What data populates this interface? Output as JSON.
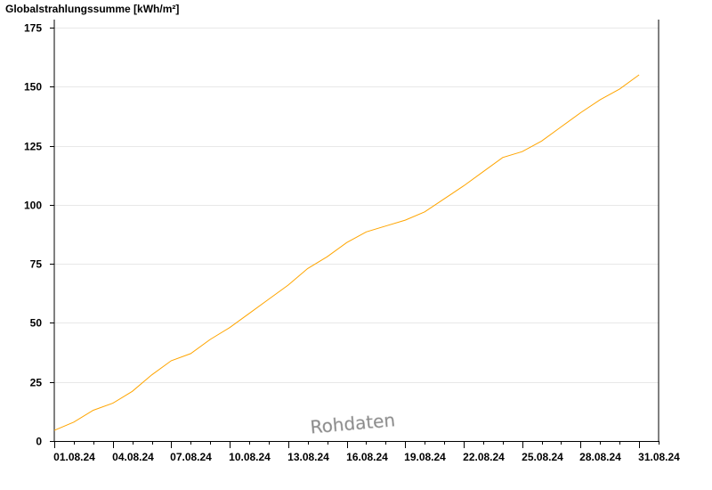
{
  "chart_data": {
    "type": "line",
    "title": "Globalstrahlungssumme [kWh/m²]",
    "xlabel": "",
    "ylabel": "",
    "watermark": "Rohdaten",
    "ylim": [
      0,
      175
    ],
    "yticks": [
      0,
      25,
      50,
      75,
      100,
      125,
      150,
      175
    ],
    "xlim": [
      "2024-08-01",
      "2024-09-01"
    ],
    "xtick_labels": [
      "01.08.24",
      "04.08.24",
      "07.08.24",
      "10.08.24",
      "13.08.24",
      "16.08.24",
      "19.08.24",
      "22.08.24",
      "25.08.24",
      "28.08.24",
      "31.08.24"
    ],
    "grid": true,
    "line_color": "#FFA500",
    "series": [
      {
        "x": [
          "2024-08-01",
          "2024-08-02",
          "2024-08-03",
          "2024-08-04",
          "2024-08-05",
          "2024-08-06",
          "2024-08-07",
          "2024-08-08",
          "2024-08-09",
          "2024-08-10",
          "2024-08-11",
          "2024-08-12",
          "2024-08-13",
          "2024-08-14",
          "2024-08-15",
          "2024-08-16",
          "2024-08-17",
          "2024-08-18",
          "2024-08-19",
          "2024-08-20",
          "2024-08-21",
          "2024-08-22",
          "2024-08-23",
          "2024-08-24",
          "2024-08-25",
          "2024-08-26",
          "2024-08-27",
          "2024-08-28",
          "2024-08-29",
          "2024-08-30",
          "2024-08-31"
        ],
        "values": [
          4.5,
          8,
          13,
          16,
          21,
          28,
          34,
          37,
          43,
          48,
          54,
          60,
          66,
          73,
          78,
          84,
          88.5,
          91,
          93.5,
          97,
          102.5,
          108,
          114,
          120,
          122.5,
          127,
          133,
          139,
          144.5,
          149,
          155
        ]
      }
    ]
  }
}
